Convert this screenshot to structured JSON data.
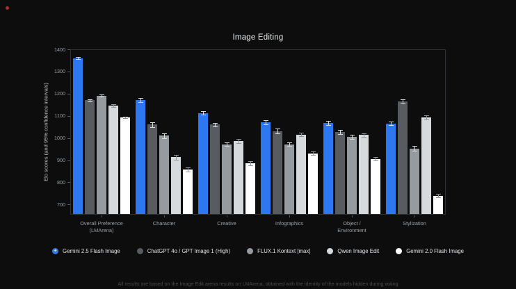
{
  "page": {
    "background": "#0d0d0d"
  },
  "indicator": {
    "record_dot_color": "#a83228"
  },
  "chart_data": {
    "type": "bar",
    "title": "Image Editing",
    "ylabel": "Elo scores (and 95% confidence intervals)",
    "categories": [
      "Overall Preference\n(LMArena)",
      "Character",
      "Creative",
      "Infographics",
      "Object /\nEnvironment",
      "Stylization"
    ],
    "yticks": [
      700,
      800,
      900,
      1000,
      1100,
      1200,
      1300,
      1400
    ],
    "ylim": [
      654,
      1400
    ],
    "grid": false,
    "error_bars": true,
    "legend_position": "bottom",
    "series": [
      {
        "name": "Gemini 2.5 Flash Image",
        "icon": "gemini-sparkle-icon",
        "color": "#2d78f0",
        "error_color": "#d9dcdf",
        "values": [
          1360,
          1172,
          1113,
          1071,
          1067,
          1065
        ],
        "errors": [
          5,
          9,
          8,
          8,
          9,
          8
        ]
      },
      {
        "name": "ChatGPT 4o / GPT Image 1 (High)",
        "icon": "circle",
        "color": "#585c61",
        "error_color": "#d9dcdf",
        "values": [
          1170,
          1060,
          1060,
          1031,
          1026,
          1166
        ],
        "errors": [
          5,
          11,
          9,
          11,
          9,
          9
        ]
      },
      {
        "name": "FLUX.1 Kontext [max]",
        "icon": "circle",
        "color": "#969ba0",
        "error_color": "#d9dcdf",
        "values": [
          1191,
          1011,
          972,
          972,
          1005,
          953
        ],
        "errors": [
          5,
          11,
          9,
          9,
          9,
          10
        ]
      },
      {
        "name": "Qwen Image Edit",
        "icon": "circle",
        "color": "#d7dadd",
        "error_color": "#8f959b",
        "values": [
          1146,
          913,
          987,
          1016,
          1013,
          1092
        ],
        "errors": [
          5,
          10,
          9,
          9,
          8,
          9
        ]
      },
      {
        "name": "Gemini 2.0 Flash Image",
        "icon": "circle",
        "color": "#ffffff",
        "error_color": "#8f959b",
        "values": [
          1093,
          858,
          885,
          931,
          906,
          739
        ],
        "errors": [
          4,
          9,
          9,
          9,
          9,
          8
        ]
      }
    ]
  },
  "caption": {
    "text": "All results are based on the Image Edit arena results on LMArena, obtained with the identity of the models hidden during voting"
  }
}
